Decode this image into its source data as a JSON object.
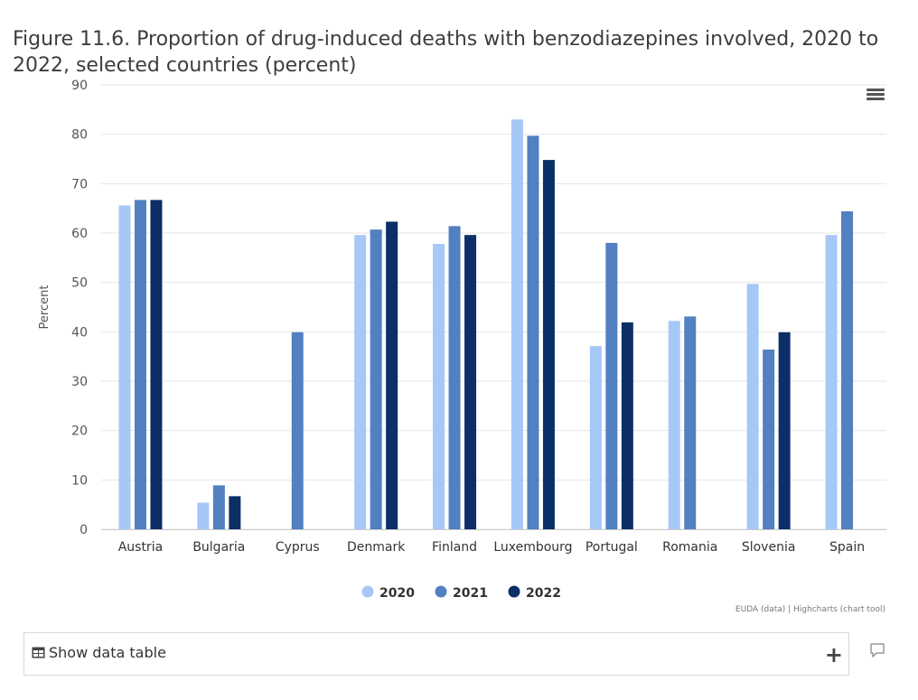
{
  "title": "Figure 11.6. Proportion of drug-induced deaths with benzodiazepines involved, 2020 to 2022, selected countries (percent)",
  "credits": "EUDA (data) | Highcharts (chart tool)",
  "data_table": {
    "label": "Show data table",
    "icon": "table-icon",
    "expand_icon": "plus-icon"
  },
  "menu": {
    "icon": "hamburger-menu-icon"
  },
  "comment": {
    "icon": "comment-icon"
  },
  "colors": {
    "2020": "#a6c8f7",
    "2021": "#5280c1",
    "2022": "#0b2f66",
    "grid": "#e6e6e6",
    "axis_text": "#555555"
  },
  "chart_data": {
    "type": "bar",
    "title": "Figure 11.6. Proportion of drug-induced deaths with benzodiazepines involved, 2020 to 2022, selected countries (percent)",
    "xlabel": "",
    "ylabel": "Percent",
    "ylim": [
      0,
      90
    ],
    "yticks": [
      0,
      10,
      20,
      30,
      40,
      50,
      60,
      70,
      80,
      90
    ],
    "grid": true,
    "legend": "bottom-center",
    "categories": [
      "Austria",
      "Bulgaria",
      "Cyprus",
      "Denmark",
      "Finland",
      "Luxembourg",
      "Portugal",
      "Romania",
      "Slovenia",
      "Spain"
    ],
    "series": [
      {
        "name": "2020",
        "values": [
          65.6,
          5.4,
          null,
          59.6,
          57.8,
          83.0,
          37.1,
          42.2,
          49.7,
          59.6
        ]
      },
      {
        "name": "2021",
        "values": [
          66.7,
          8.9,
          39.9,
          60.7,
          61.4,
          79.7,
          58.0,
          43.1,
          36.4,
          64.4
        ]
      },
      {
        "name": "2022",
        "values": [
          66.7,
          6.7,
          null,
          62.3,
          59.6,
          74.8,
          41.9,
          null,
          39.9,
          null
        ]
      }
    ]
  }
}
